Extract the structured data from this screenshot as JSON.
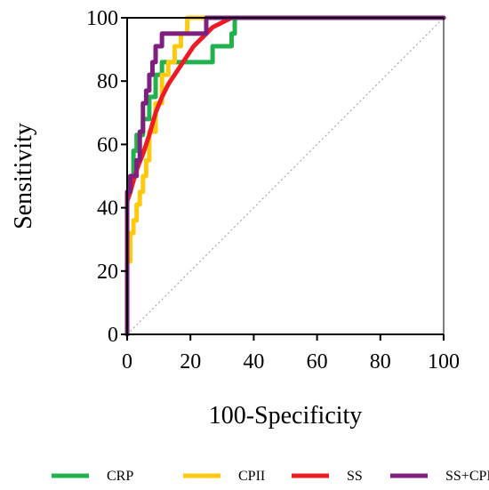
{
  "chart_data": {
    "type": "line",
    "title": "",
    "xlabel": "100-Specificity",
    "ylabel": "Sensitivity",
    "xlim": [
      0,
      100
    ],
    "ylim": [
      0,
      100
    ],
    "xticks": [
      "0",
      "20",
      "40",
      "60",
      "80",
      "100"
    ],
    "yticks": [
      "0",
      "20",
      "40",
      "60",
      "80",
      "100"
    ],
    "grid": false,
    "legend_position": "bottom",
    "reference_line": {
      "x": [
        0,
        100
      ],
      "y": [
        0,
        100
      ],
      "style": "dotted",
      "color": "#999999"
    },
    "series": [
      {
        "name": "CRP",
        "color": "#22b14c",
        "x": [
          0,
          0,
          1,
          1,
          2,
          2,
          3,
          3,
          5,
          5,
          7,
          7,
          9,
          9,
          11,
          11,
          27,
          27,
          33,
          33,
          34,
          34,
          100
        ],
        "y": [
          0,
          45,
          45,
          50,
          50,
          58,
          58,
          63,
          63,
          68,
          68,
          75,
          75,
          82,
          82,
          86,
          86,
          91,
          91,
          95,
          95,
          100,
          100
        ]
      },
      {
        "name": "CPII",
        "color": "#ffc90e",
        "x": [
          0,
          0,
          1,
          1,
          2,
          2,
          3,
          3,
          4,
          4,
          5,
          5,
          6,
          6,
          7,
          7,
          9,
          9,
          11,
          11,
          13,
          13,
          15,
          15,
          17,
          17,
          19,
          19,
          21,
          21,
          100
        ],
        "y": [
          0,
          23,
          23,
          32,
          32,
          36,
          36,
          41,
          41,
          45,
          45,
          50,
          50,
          55,
          55,
          64,
          64,
          73,
          73,
          82,
          82,
          86,
          86,
          91,
          91,
          95,
          95,
          100,
          100,
          100,
          100
        ]
      },
      {
        "name": "SS",
        "color": "#ed1c24",
        "x": [
          0,
          0,
          1,
          3,
          5,
          7,
          9,
          11,
          13,
          15,
          17,
          19,
          21,
          23,
          25,
          27,
          29,
          31,
          33,
          100
        ],
        "y": [
          0,
          42,
          45,
          52,
          57,
          63,
          70,
          75,
          79,
          82,
          85,
          88,
          91,
          93,
          95,
          97,
          98,
          99,
          100,
          100
        ]
      },
      {
        "name": "SS+CPII",
        "color": "#7f1f7f",
        "x": [
          0,
          0,
          1,
          1,
          3,
          3,
          4,
          4,
          5,
          5,
          6,
          6,
          7,
          7,
          8,
          8,
          9,
          9,
          11,
          11,
          23,
          23,
          25,
          25,
          27,
          27,
          100
        ],
        "y": [
          0,
          45,
          45,
          50,
          50,
          55,
          55,
          64,
          64,
          73,
          73,
          77,
          77,
          82,
          82,
          86,
          86,
          91,
          91,
          95,
          95,
          95,
          95,
          100,
          100,
          100,
          100
        ]
      }
    ]
  }
}
